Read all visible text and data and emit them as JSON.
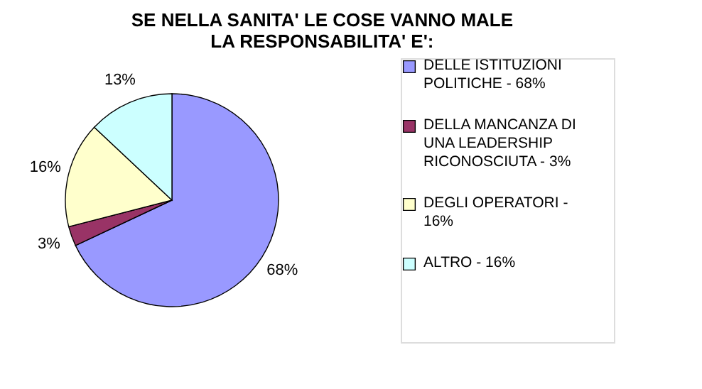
{
  "chart_data": {
    "type": "pie",
    "title": [
      "SE NELLA SANITA' LE COSE VANNO MALE",
      "LA RESPONSABILITA' E':"
    ],
    "categories": [
      "DELLE ISTITUZIONI POLITICHE - 68%",
      "DELLA MANCANZA DI UNA LEADERSHIP RICONOSCIUTA - 3%",
      "DEGLI OPERATORI - 16%",
      "ALTRO - 16%"
    ],
    "values": [
      68,
      3,
      16,
      13
    ],
    "colors": [
      "#9999ff",
      "#993366",
      "#ffffcc",
      "#ccffff"
    ],
    "value_labels": [
      "68%",
      "3%",
      "16%",
      "13%"
    ],
    "legend": "right"
  }
}
